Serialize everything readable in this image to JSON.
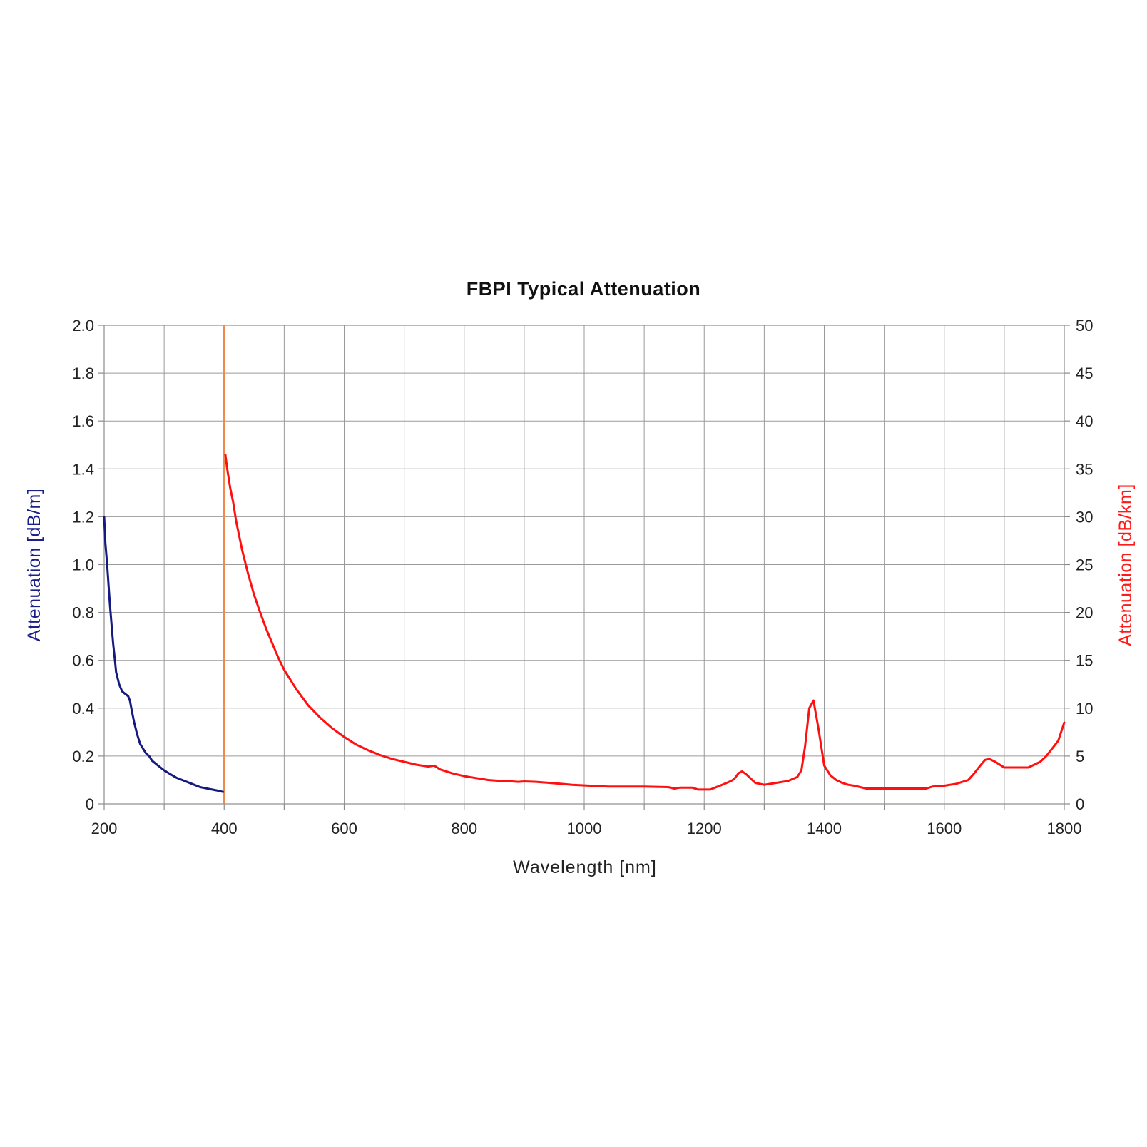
{
  "chart_data": {
    "type": "line",
    "title": "FBPI Typical Attenuation",
    "xlabel": "Wavelength [nm]",
    "ylabel_left": "Attenuation [dB/m]",
    "ylabel_right": "Attenuation [dB/km]",
    "xlim": [
      200,
      1800
    ],
    "ylim_left": [
      0,
      2.0
    ],
    "ylim_right": [
      0,
      50
    ],
    "x_ticks": [
      "200",
      "400",
      "600",
      "800",
      "1000",
      "1200",
      "1400",
      "1600",
      "1800"
    ],
    "x_tick_values": [
      200,
      400,
      600,
      800,
      1000,
      1200,
      1400,
      1600,
      1800
    ],
    "y_left_ticks": [
      "0",
      "0.2",
      "0.4",
      "0.6",
      "0.8",
      "1.0",
      "1.2",
      "1.4",
      "1.6",
      "1.8",
      "2.0"
    ],
    "y_left_tick_values": [
      0,
      0.2,
      0.4,
      0.6,
      0.8,
      1.0,
      1.2,
      1.4,
      1.6,
      1.8,
      2.0
    ],
    "y_right_ticks": [
      "0",
      "5",
      "10",
      "15",
      "20",
      "25",
      "30",
      "35",
      "40",
      "45",
      "50"
    ],
    "y_right_tick_values": [
      0,
      5,
      10,
      15,
      20,
      25,
      30,
      35,
      40,
      45,
      50
    ],
    "grid": true,
    "x_grid_step": 100,
    "colors": {
      "left_axis_label": "#1b1f8a",
      "right_axis_label": "#ff1a1a",
      "divider": "#f08a4b"
    },
    "divider_x": 400,
    "series": [
      {
        "axis": "left",
        "unit": "dB/m",
        "color": "#151a80",
        "x": [
          200,
          202,
          205,
          208,
          210,
          213,
          215,
          218,
          220,
          225,
          230,
          235,
          240,
          243,
          246,
          250,
          255,
          260,
          265,
          270,
          275,
          280,
          290,
          300,
          310,
          320,
          330,
          340,
          350,
          360,
          370,
          380,
          390,
          398
        ],
        "y": [
          1.2,
          1.09,
          1.0,
          0.89,
          0.82,
          0.73,
          0.67,
          0.6,
          0.55,
          0.5,
          0.47,
          0.46,
          0.45,
          0.43,
          0.39,
          0.34,
          0.29,
          0.25,
          0.23,
          0.21,
          0.2,
          0.18,
          0.16,
          0.14,
          0.125,
          0.11,
          0.1,
          0.09,
          0.08,
          0.07,
          0.065,
          0.06,
          0.055,
          0.05
        ]
      },
      {
        "axis": "right",
        "unit": "dB/km",
        "color": "#ff1010",
        "x": [
          402,
          405,
          410,
          415,
          420,
          430,
          440,
          450,
          460,
          470,
          480,
          490,
          500,
          520,
          540,
          560,
          580,
          600,
          620,
          640,
          660,
          680,
          700,
          720,
          740,
          750,
          760,
          780,
          800,
          820,
          840,
          860,
          880,
          890,
          900,
          920,
          960,
          980,
          1040,
          1100,
          1140,
          1150,
          1160,
          1180,
          1190,
          1210,
          1230,
          1245,
          1250,
          1257,
          1263,
          1270,
          1285,
          1300,
          1320,
          1340,
          1355,
          1362,
          1368,
          1375,
          1382,
          1390,
          1400,
          1410,
          1420,
          1430,
          1440,
          1450,
          1470,
          1500,
          1570,
          1580,
          1600,
          1620,
          1640,
          1650,
          1660,
          1668,
          1675,
          1685,
          1700,
          1740,
          1760,
          1770,
          1780,
          1790,
          1800
        ],
        "y": [
          36.5,
          35.0,
          33.0,
          31.5,
          29.5,
          26.5,
          24.0,
          21.8,
          20.0,
          18.3,
          16.8,
          15.3,
          14.0,
          12.0,
          10.3,
          9.0,
          7.9,
          7.0,
          6.2,
          5.6,
          5.1,
          4.7,
          4.4,
          4.1,
          3.9,
          4.0,
          3.6,
          3.2,
          2.9,
          2.7,
          2.5,
          2.4,
          2.35,
          2.3,
          2.35,
          2.3,
          2.1,
          2.0,
          1.8,
          1.8,
          1.75,
          1.6,
          1.7,
          1.7,
          1.5,
          1.5,
          2.0,
          2.4,
          2.6,
          3.2,
          3.4,
          3.1,
          2.2,
          2.0,
          2.2,
          2.4,
          2.8,
          3.5,
          6.0,
          10.0,
          10.8,
          8.0,
          4.0,
          3.0,
          2.5,
          2.2,
          2.0,
          1.9,
          1.6,
          1.6,
          1.6,
          1.8,
          1.9,
          2.1,
          2.5,
          3.2,
          4.0,
          4.6,
          4.7,
          4.4,
          3.8,
          3.8,
          4.4,
          5.0,
          5.8,
          6.6,
          8.5
        ]
      }
    ]
  }
}
